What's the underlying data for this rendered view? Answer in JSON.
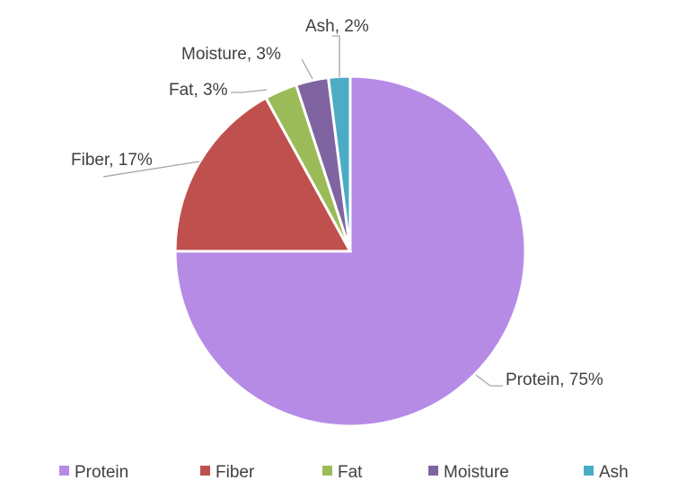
{
  "chart_data": {
    "type": "pie",
    "title": "",
    "categories": [
      "Protein",
      "Fiber",
      "Fat",
      "Moisture",
      "Ash"
    ],
    "values": [
      75,
      17,
      3,
      3,
      2
    ],
    "data_labels": [
      "Protein, 75%",
      "Fiber, 17%",
      "Fat, 3%",
      "Moisture, 3%",
      "Ash, 2%"
    ],
    "colors": [
      "#B68BE6",
      "#C0504D",
      "#9BBB59",
      "#8064A2",
      "#4BACC6"
    ],
    "start_angle": "12 o'clock, clockwise",
    "legend_position": "bottom"
  }
}
